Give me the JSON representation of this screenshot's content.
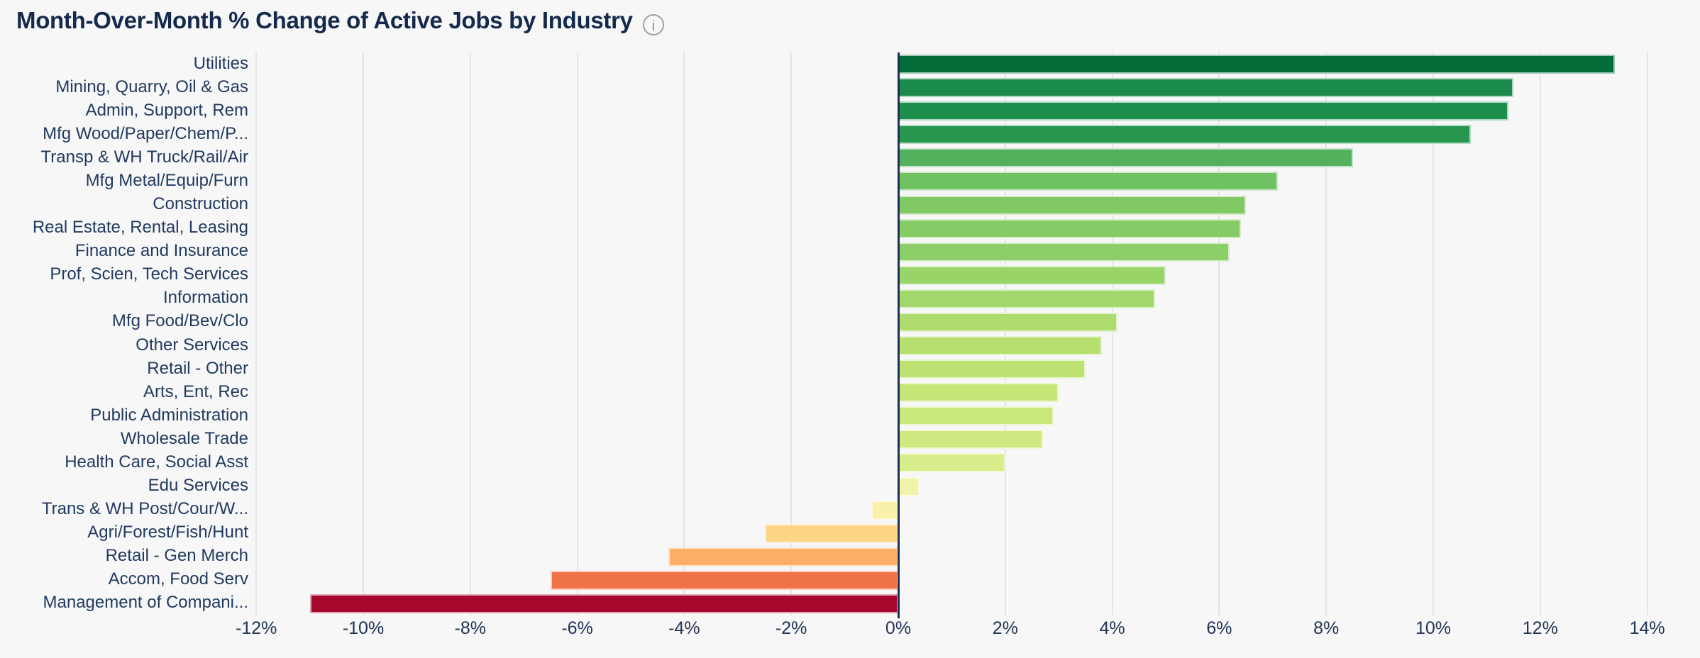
{
  "header": {
    "title": "Month-Over-Month % Change of Active Jobs by Industry",
    "info_glyph": "i"
  },
  "colors": {
    "background": "#f7f7f8",
    "title_text": "#14294b",
    "category_text": "#223a5e",
    "tick_text": "#223454",
    "gridline": "#e4e4e6",
    "zero_axis_line": "#1d2f55"
  },
  "chart_data": {
    "type": "bar",
    "orientation": "horizontal",
    "title": "Month-Over-Month % Change of Active Jobs by Industry",
    "xlabel": "",
    "ylabel": "",
    "value_unit": "%",
    "xlim": [
      -12,
      14
    ],
    "x_ticks": [
      -12,
      -10,
      -8,
      -6,
      -4,
      -2,
      0,
      2,
      4,
      6,
      8,
      10,
      12,
      14
    ],
    "x_tick_labels": [
      "-12%",
      "-10%",
      "-8%",
      "-6%",
      "-4%",
      "-2%",
      "0%",
      "2%",
      "4%",
      "6%",
      "8%",
      "10%",
      "12%",
      "14%"
    ],
    "grid": "vertical-only",
    "legend": "none",
    "categories": [
      "Utilities",
      "Mining, Quarry, Oil & Gas",
      "Admin, Support, Rem",
      "Mfg Wood/Paper/Chem/P...",
      "Transp & WH Truck/Rail/Air",
      "Mfg Metal/Equip/Furn",
      "Construction",
      "Real Estate, Rental, Leasing",
      "Finance and Insurance",
      "Prof, Scien, Tech Services",
      "Information",
      "Mfg Food/Bev/Clo",
      "Other Services",
      "Retail - Other",
      "Arts, Ent, Rec",
      "Public Administration",
      "Wholesale Trade",
      "Health Care, Social Asst",
      "Edu Services",
      "Trans & WH Post/Cour/W...",
      "Agri/Forest/Fish/Hunt",
      "Retail - Gen Merch",
      "Accom, Food Serv",
      "Management of Compani..."
    ],
    "values": [
      13.4,
      11.5,
      11.4,
      10.7,
      8.5,
      7.1,
      6.5,
      6.4,
      6.2,
      5.0,
      4.8,
      4.1,
      3.8,
      3.5,
      3.0,
      2.9,
      2.7,
      2.0,
      0.4,
      -0.5,
      -2.5,
      -4.3,
      -6.5,
      -11.0
    ],
    "bar_colors": [
      "#046c38",
      "#1b8b4b",
      "#1e8e4d",
      "#27964f",
      "#53b15e",
      "#6fc162",
      "#82c965",
      "#87cb66",
      "#8cce68",
      "#99d469",
      "#a1d76b",
      "#afdc6e",
      "#b6df70",
      "#bde272",
      "#c7e577",
      "#cae77a",
      "#d0e980",
      "#d8ed8b",
      "#eff4a9",
      "#f9f1a9",
      "#fed584",
      "#fcae66",
      "#f07347",
      "#a5082c"
    ]
  }
}
